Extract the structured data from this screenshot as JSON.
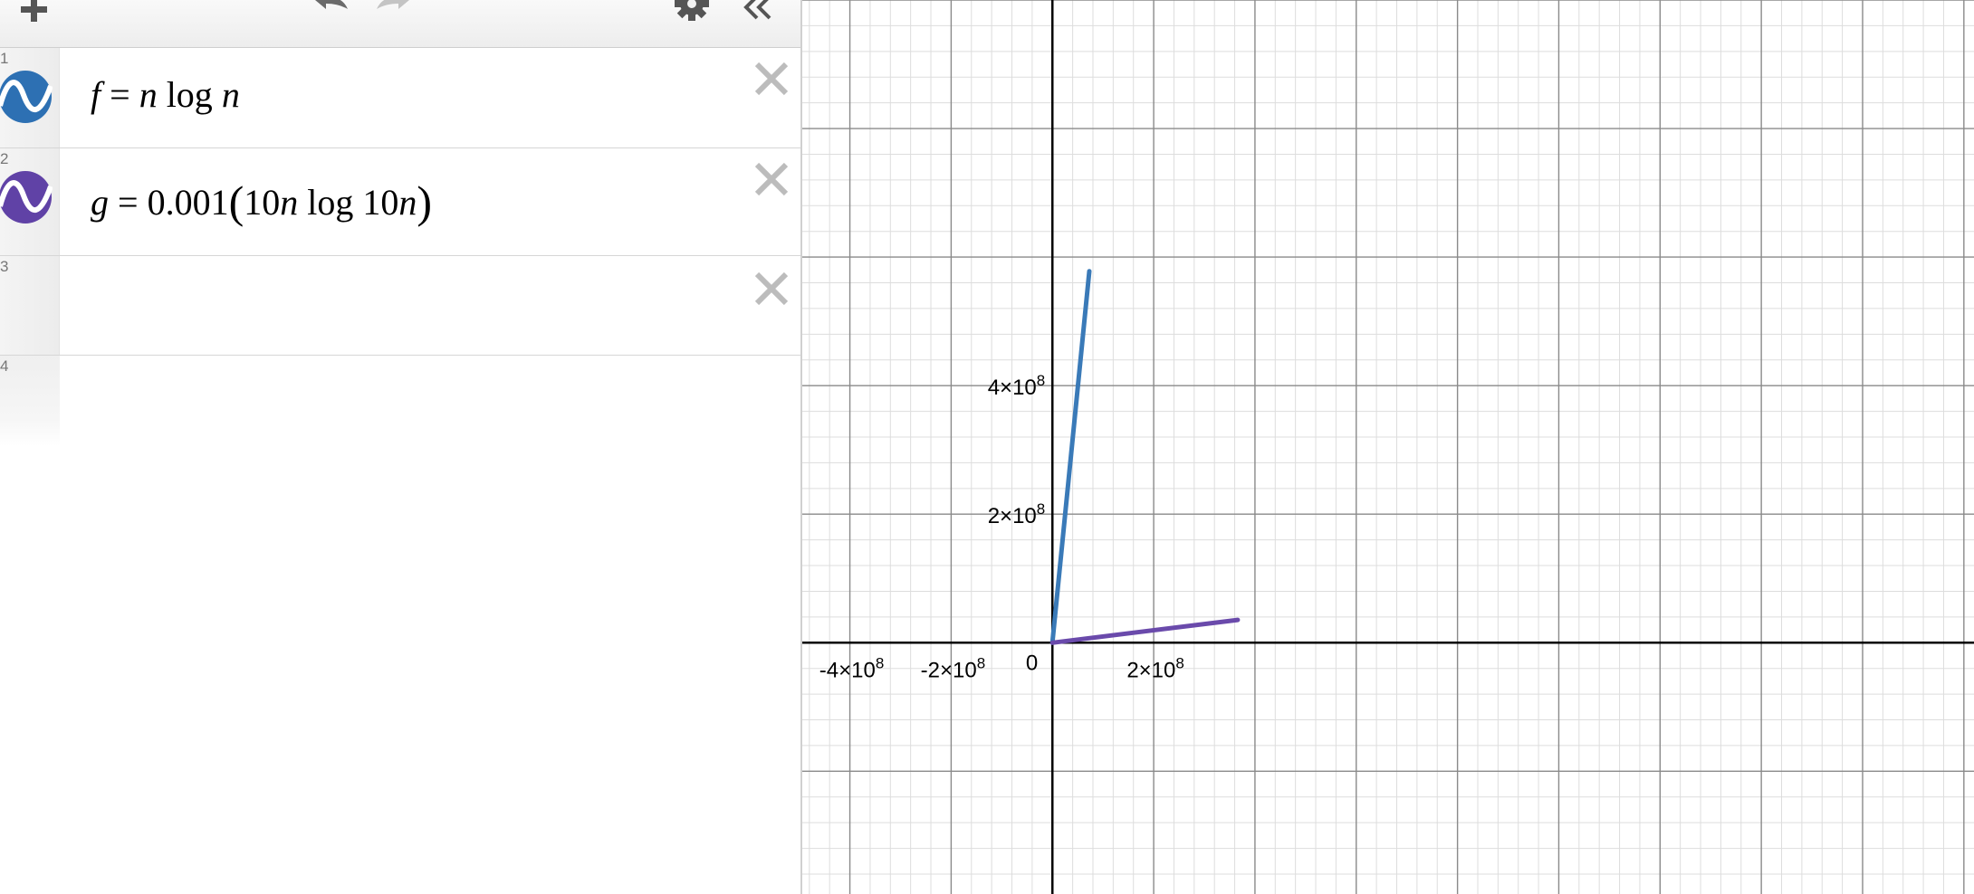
{
  "expressions": [
    {
      "index": "1",
      "color": "#2d70b3",
      "lhs": "f",
      "eq": "=",
      "parts": [
        "n",
        "log",
        "n"
      ]
    },
    {
      "index": "2",
      "color": "#6042a6",
      "lhs": "g",
      "eq": "=",
      "coef": "0.001",
      "inner": [
        "10",
        "n",
        "log",
        "10",
        "n"
      ]
    },
    {
      "index": "3"
    },
    {
      "index": "4"
    }
  ],
  "graph": {
    "x_range": [
      -494000000,
      1820000000
    ],
    "y_range": [
      -391000000,
      1000000000
    ],
    "axis_color": "#000000",
    "major_grid_color": "#8a8a8a",
    "minor_grid_color": "#dddddd",
    "origin_label": "0",
    "x_ticks": [
      {
        "value": -400000000,
        "mantissa": "-4×10",
        "exp": "8"
      },
      {
        "value": -200000000,
        "mantissa": "-2×10",
        "exp": "8"
      },
      {
        "value": 200000000,
        "mantissa": "2×10",
        "exp": "8"
      }
    ],
    "y_ticks": [
      {
        "value": 200000000,
        "mantissa": "2×10",
        "exp": "8"
      },
      {
        "value": 400000000,
        "mantissa": "4×10",
        "exp": "8"
      }
    ],
    "curves": [
      {
        "name": "f",
        "color": "#3a7ab8",
        "points": [
          [
            0,
            0
          ],
          [
            72900000,
            578000000
          ]
        ]
      },
      {
        "name": "g",
        "color": "#6a4aab",
        "points": [
          [
            0,
            0
          ],
          [
            366000000,
            35400000
          ]
        ]
      }
    ]
  }
}
